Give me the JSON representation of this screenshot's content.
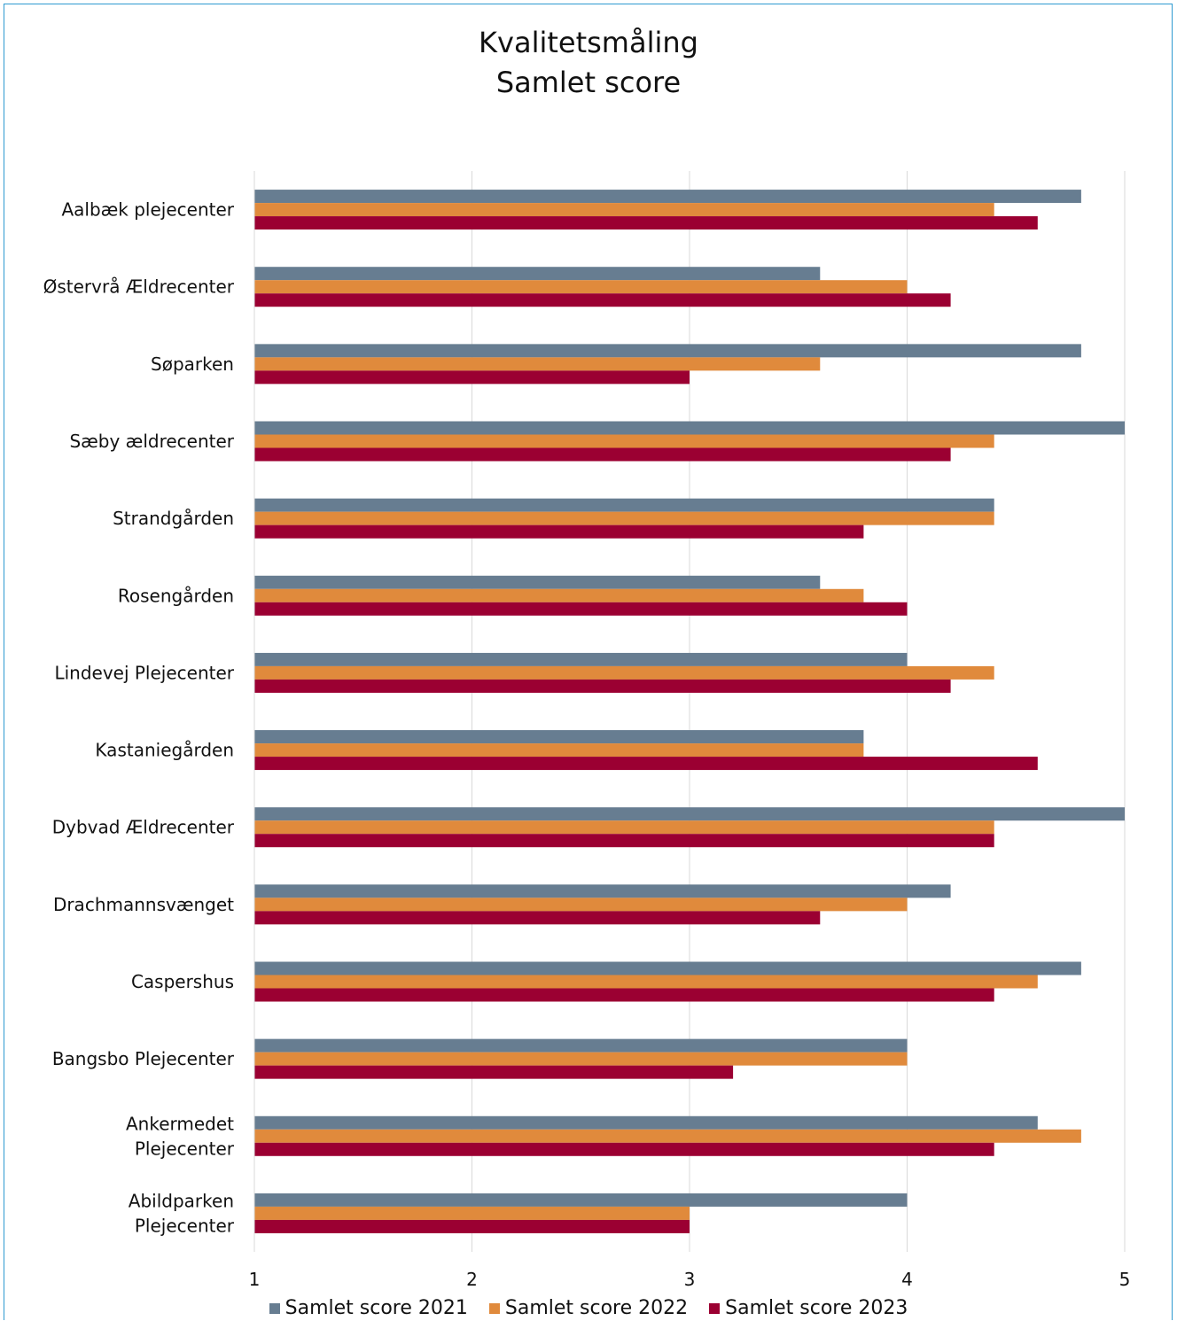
{
  "chart_data": {
    "type": "bar",
    "orientation": "horizontal",
    "title_lines": [
      "Kvalitetsmåling",
      "Samlet score"
    ],
    "categories": [
      [
        "Aalbæk plejecenter"
      ],
      [
        "Østervrå Ældrecenter"
      ],
      [
        "Søparken"
      ],
      [
        "Sæby ældrecenter"
      ],
      [
        "Strandgården"
      ],
      [
        "Rosengården"
      ],
      [
        "Lindevej Plejecenter"
      ],
      [
        "Kastaniegården"
      ],
      [
        "Dybvad Ældrecenter"
      ],
      [
        "Drachmannsvænget"
      ],
      [
        "Caspershus"
      ],
      [
        "Bangsbo Plejecenter"
      ],
      [
        "Ankermedet",
        "Plejecenter"
      ],
      [
        "Abildparken",
        "Plejecenter"
      ]
    ],
    "series": [
      {
        "name": "Samlet score 2021",
        "color": "#677d91",
        "values": [
          4.8,
          3.6,
          4.8,
          5.0,
          4.4,
          3.6,
          4.0,
          3.8,
          5.0,
          4.2,
          4.8,
          4.0,
          4.6,
          4.0
        ]
      },
      {
        "name": "Samlet score 2022",
        "color": "#e08a3c",
        "values": [
          4.4,
          4.0,
          3.6,
          4.4,
          4.4,
          3.8,
          4.4,
          3.8,
          4.4,
          4.0,
          4.6,
          4.0,
          4.8,
          3.0
        ]
      },
      {
        "name": "Samlet score 2023",
        "color": "#9b0032",
        "values": [
          4.6,
          4.2,
          3.0,
          4.2,
          3.8,
          4.0,
          4.2,
          4.6,
          4.4,
          3.6,
          4.4,
          3.2,
          4.4,
          3.0
        ]
      }
    ],
    "xlim": [
      1,
      5
    ],
    "xticks": [
      "1",
      "2",
      "3",
      "4",
      "5"
    ],
    "grid": true,
    "legend_position": "bottom"
  }
}
